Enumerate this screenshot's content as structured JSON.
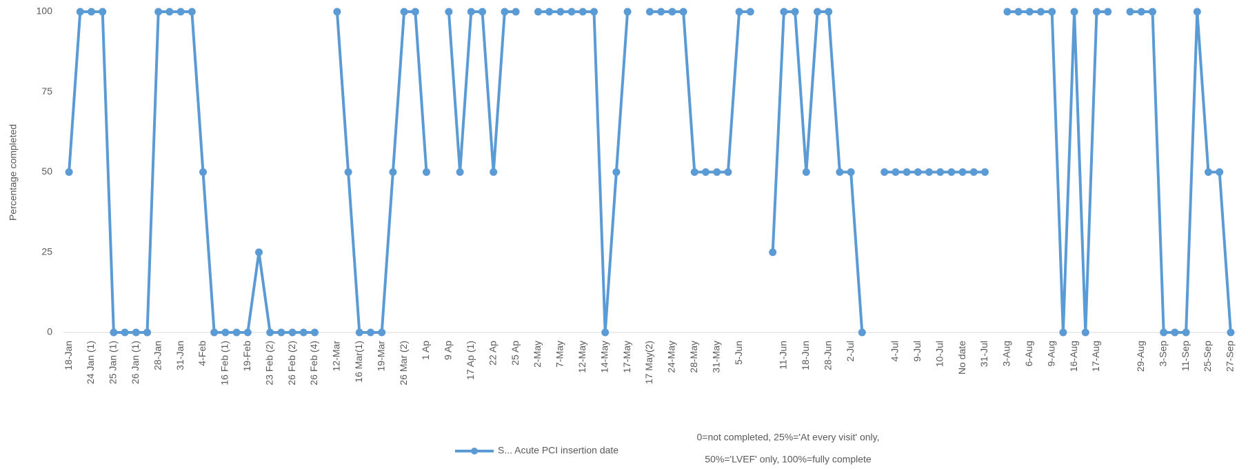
{
  "chart_data": {
    "type": "line",
    "y_label": "Percentage completed",
    "categories": [
      "18-Jan",
      null,
      "24 Jan (1)",
      null,
      "25 Jan (1)",
      null,
      "26 Jan (1)",
      null,
      "28-Jan",
      null,
      "31-Jan",
      null,
      "4-Feb",
      null,
      "16 Feb (1)",
      null,
      "19-Feb",
      null,
      "23 Feb (2)",
      null,
      "26 Feb (2)",
      null,
      "26 Feb (4)",
      null,
      "12-Mar",
      null,
      "16 Mar(1)",
      null,
      "19-Mar",
      null,
      "26 Mar (2)",
      null,
      "1 Ap",
      null,
      "9 Ap",
      null,
      "17 Ap (1)",
      null,
      "22 Ap",
      null,
      "25 Ap",
      null,
      "2-May",
      null,
      "7-May",
      null,
      "12-May",
      null,
      "14-May",
      null,
      "17-May",
      null,
      "17 May(2)",
      null,
      "24-May",
      null,
      "28-May",
      null,
      "31-May",
      null,
      "5-Jun",
      null,
      null,
      null,
      "11-Jun",
      null,
      "18-Jun",
      null,
      "28-Jun",
      null,
      "2-Jul",
      null,
      null,
      null,
      "4-Jul",
      null,
      "9-Jul",
      null,
      "10-Jul",
      null,
      "No date",
      null,
      "31-Jul",
      null,
      "3-Aug",
      null,
      "6-Aug",
      null,
      "9-Aug",
      null,
      "16-Aug",
      null,
      "17-Aug",
      null,
      null,
      null,
      "29-Aug",
      null,
      "3-Sep",
      null,
      "11-Sep",
      null,
      "25-Sep",
      null,
      "27-Sep"
    ],
    "series": [
      {
        "name": "S... Acute PCI insertion date",
        "color": "#5b9bd5",
        "values": [
          50,
          100,
          100,
          100,
          0,
          0,
          0,
          0,
          100,
          100,
          100,
          100,
          50,
          0,
          0,
          0,
          0,
          25,
          0,
          0,
          0,
          0,
          0,
          null,
          100,
          50,
          0,
          0,
          0,
          50,
          100,
          100,
          50,
          null,
          100,
          50,
          100,
          100,
          50,
          100,
          100,
          null,
          100,
          100,
          100,
          100,
          100,
          100,
          0,
          50,
          100,
          null,
          100,
          100,
          100,
          100,
          50,
          50,
          50,
          50,
          100,
          100,
          null,
          25,
          100,
          100,
          50,
          100,
          100,
          50,
          50,
          0,
          null,
          50,
          50,
          50,
          50,
          50,
          50,
          50,
          50,
          50,
          50,
          null,
          100,
          100,
          100,
          100,
          100,
          0,
          100,
          0,
          100,
          100,
          null,
          100,
          100,
          100,
          0,
          0,
          0,
          100,
          50,
          50,
          0
        ]
      }
    ],
    "ylim": [
      0,
      100
    ],
    "yticks": [
      0,
      25,
      50,
      75,
      100
    ],
    "grid": false,
    "legend": "bottom",
    "annotations": [
      "0=not completed, 25%='At every visit' only,",
      "50%='LVEF' only, 100%=fully complete"
    ]
  }
}
